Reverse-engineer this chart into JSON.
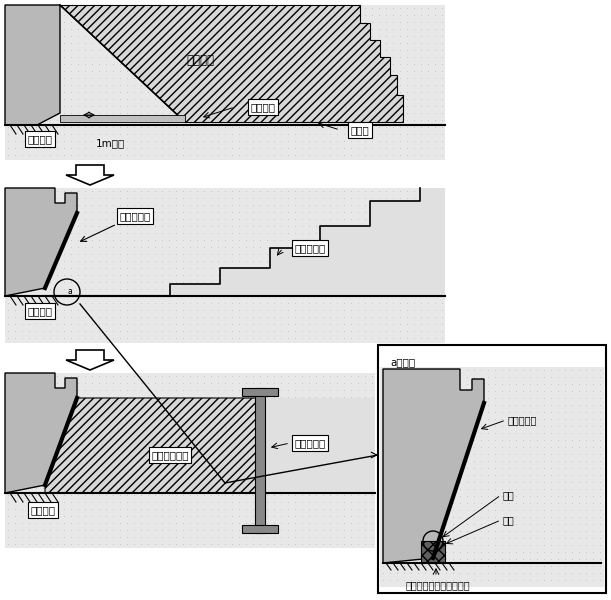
{
  "white": "#ffffff",
  "black": "#000000",
  "light_gray": "#c8c8c8",
  "medium_gray": "#b0b0b0",
  "hatch_gray": "#d0d0d0",
  "dotted_bg": "#e0e0e0",
  "dot_color": "#b8b8b8",
  "panel1_label1": "機械掘削",
  "panel1_label2": "人力掘削",
  "panel1_label3": "1m程度",
  "panel1_label4": "遷水工",
  "panel1_label5": "底部地盤",
  "panel2_label1": "新規遷水工",
  "panel2_label2": "遷水工撞去",
  "panel2_label3": "底部地盤",
  "panel3_label1": "土砂堆戻し等",
  "panel3_label2": "杭等の打設",
  "panel3_label3": "底部地盤",
  "detail_title": "a詳細図",
  "detail_label1": "新規遷水工",
  "detail_label2": "接合",
  "detail_label3": "切断",
  "detail_label4": "汚水流出防止堡等の設置"
}
